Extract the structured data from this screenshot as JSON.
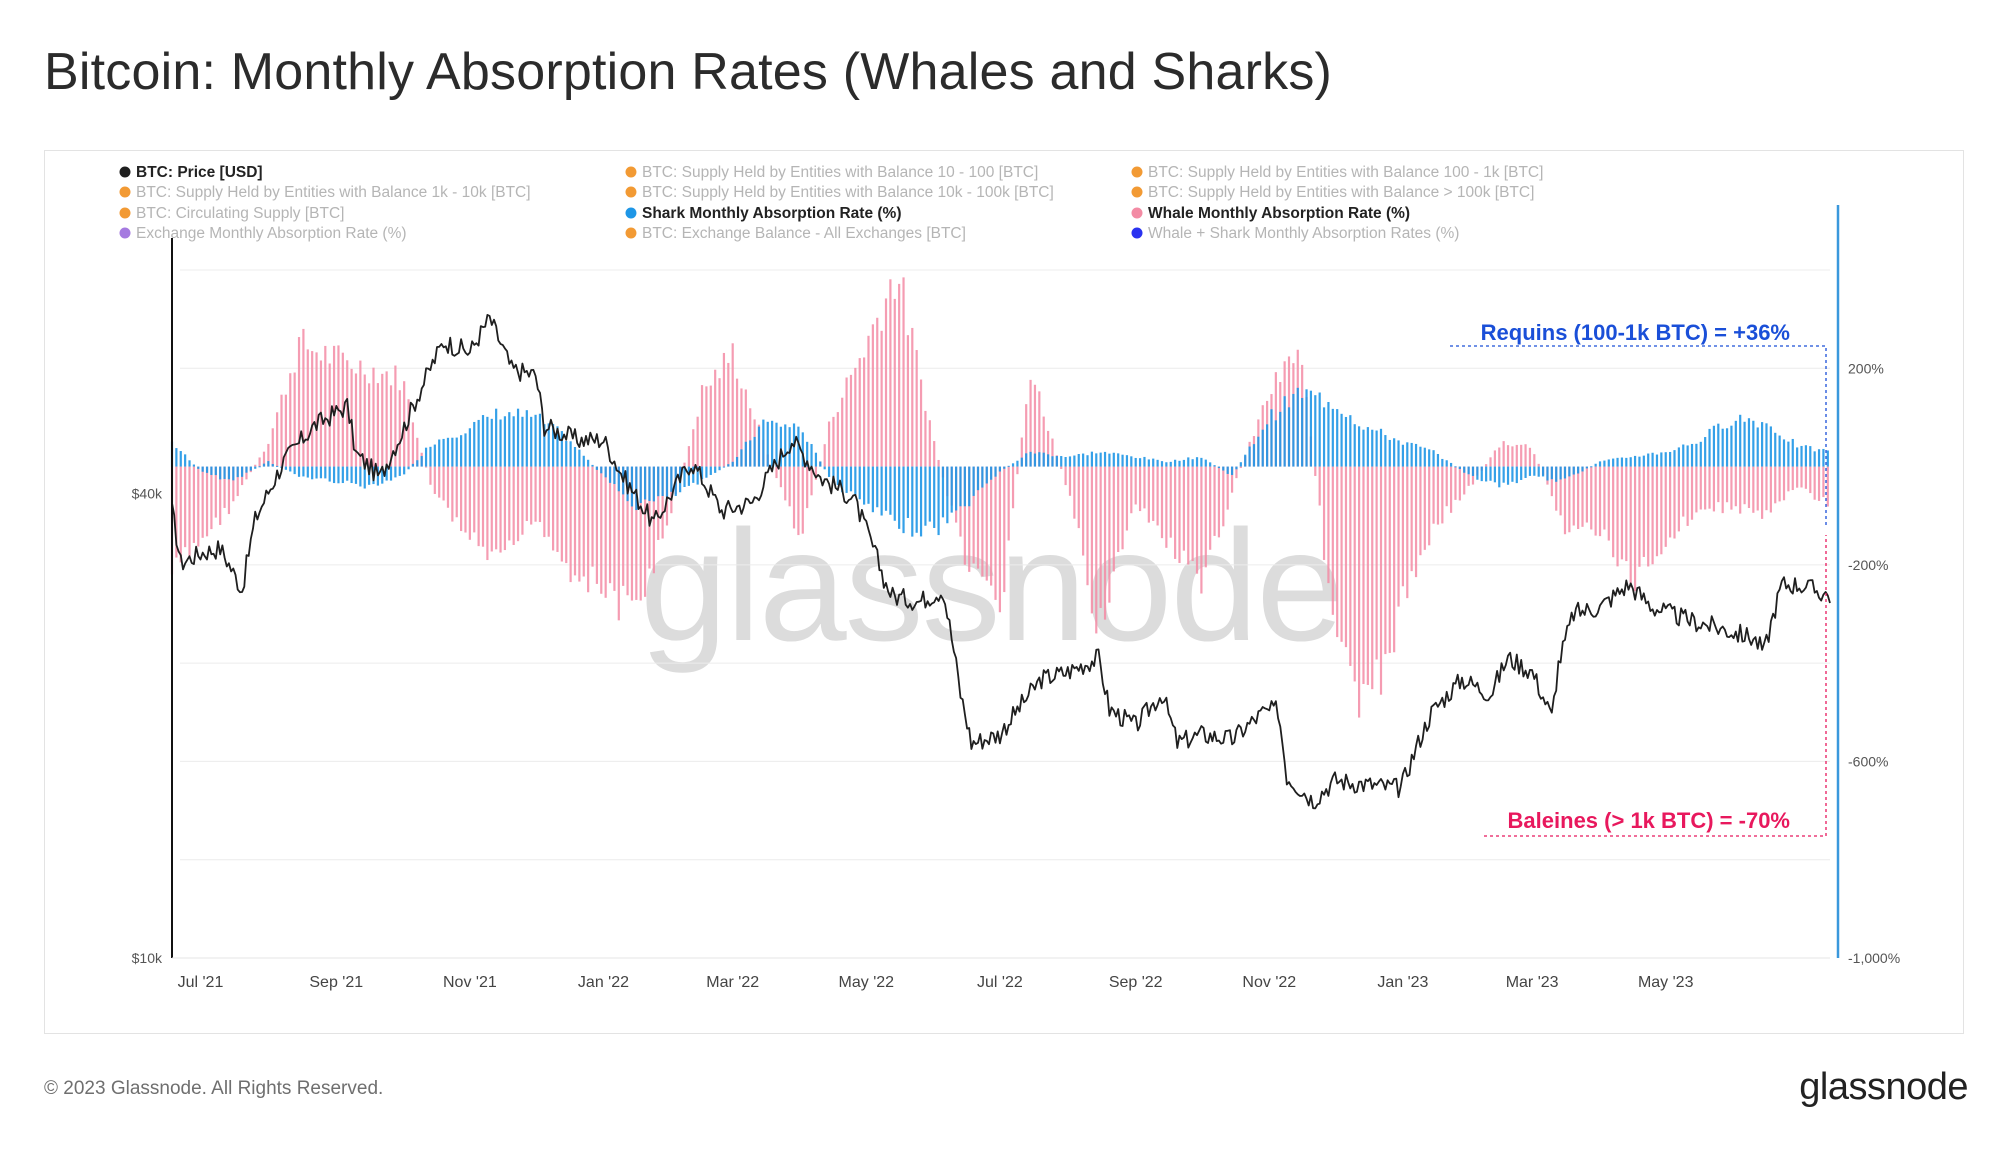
{
  "title": "Bitcoin: Monthly Absorption Rates (Whales and Sharks)",
  "footer": {
    "copyright": "© 2023 Glassnode. All Rights Reserved.",
    "logo": "glassnode"
  },
  "watermark": "glassnode",
  "colors": {
    "price": "#1f1f1f",
    "shark": "#1e96e6",
    "whale": "#f38ba4",
    "orange": "#f29a34",
    "purple": "#a57ae0",
    "blue": "#2a32f0",
    "axis_right": "#3a98dc",
    "shark_annotation": "#1a4fd8",
    "whale_annotation": "#e8185d",
    "legend_inactive": "#b5b5b5",
    "legend_active": "#222222"
  },
  "chart_data": {
    "type": "bar+line",
    "title": "Bitcoin: Monthly Absorption Rates (Whales and Sharks)",
    "x_range": [
      "2021-06-18",
      "2023-07-15"
    ],
    "x_ticks": [
      "Jul '21",
      "Sep '21",
      "Nov '21",
      "Jan '22",
      "Mar '22",
      "May '22",
      "Jul '22",
      "Sep '22",
      "Nov '22",
      "Jan '23",
      "Mar '23",
      "May '23"
    ],
    "x_tick_dates": [
      "2021-07-01",
      "2021-09-01",
      "2021-11-01",
      "2022-01-01",
      "2022-03-01",
      "2022-05-01",
      "2022-07-01",
      "2022-09-01",
      "2022-11-01",
      "2023-01-01",
      "2023-03-01",
      "2023-05-01"
    ],
    "y_left": {
      "scale": "log",
      "range": [
        10000,
        80000
      ],
      "tick_labels": [
        "$10k",
        "$40k"
      ],
      "tick_values": [
        10000,
        40000
      ]
    },
    "y_right": {
      "scale": "linear",
      "range": [
        -1000,
        400
      ],
      "tick_labels": [
        "-1,000%",
        "-600%",
        "-200%",
        "200%"
      ],
      "tick_values": [
        -1000,
        -600,
        -200,
        200
      ],
      "grid_values": [
        -1000,
        -800,
        -600,
        -400,
        -200,
        0,
        200,
        400
      ]
    },
    "legend": [
      {
        "label": "BTC: Price [USD]",
        "color": "#1f1f1f",
        "active": true
      },
      {
        "label": "BTC: Supply Held by Entities with Balance 10 - 100 [BTC]",
        "color": "#f29a34",
        "active": false
      },
      {
        "label": "BTC: Supply Held by Entities with Balance 100 - 1k [BTC]",
        "color": "#f29a34",
        "active": false
      },
      {
        "label": "BTC: Supply Held by Entities with Balance 1k - 10k [BTC]",
        "color": "#f29a34",
        "active": false
      },
      {
        "label": "BTC: Supply Held by Entities with Balance 10k - 100k [BTC]",
        "color": "#f29a34",
        "active": false
      },
      {
        "label": "BTC: Supply Held by Entities with Balance > 100k [BTC]",
        "color": "#f29a34",
        "active": false
      },
      {
        "label": "BTC: Circulating Supply [BTC]",
        "color": "#f29a34",
        "active": false
      },
      {
        "label": "Shark Monthly Absorption Rate (%)",
        "color": "#1e96e6",
        "active": true
      },
      {
        "label": "Whale Monthly Absorption Rate (%)",
        "color": "#f38ba4",
        "active": true
      },
      {
        "label": "Exchange Monthly Absorption Rate (%)",
        "color": "#a57ae0",
        "active": false
      },
      {
        "label": "BTC: Exchange Balance - All Exchanges [BTC]",
        "color": "#f29a34",
        "active": false
      },
      {
        "label": "Whale + Shark Monthly Absorption Rates (%)",
        "color": "#2a32f0",
        "active": false
      }
    ],
    "series": [
      {
        "name": "BTC: Price [USD]",
        "type": "line",
        "axis": "left",
        "dates": [
          "2021-06-18",
          "2021-06-22",
          "2021-07-01",
          "2021-07-10",
          "2021-07-20",
          "2021-07-26",
          "2021-08-08",
          "2021-08-22",
          "2021-09-06",
          "2021-09-10",
          "2021-09-21",
          "2021-10-01",
          "2021-10-10",
          "2021-10-20",
          "2021-11-01",
          "2021-11-10",
          "2021-11-20",
          "2021-12-01",
          "2021-12-05",
          "2021-12-20",
          "2022-01-01",
          "2022-01-10",
          "2022-01-24",
          "2022-02-10",
          "2022-02-24",
          "2022-03-10",
          "2022-03-28",
          "2022-04-10",
          "2022-04-25",
          "2022-05-10",
          "2022-05-13",
          "2022-05-25",
          "2022-06-05",
          "2022-06-13",
          "2022-06-18",
          "2022-07-01",
          "2022-07-20",
          "2022-08-01",
          "2022-08-15",
          "2022-08-20",
          "2022-09-01",
          "2022-09-13",
          "2022-09-20",
          "2022-10-01",
          "2022-10-15",
          "2022-10-29",
          "2022-11-05",
          "2022-11-09",
          "2022-11-21",
          "2022-12-01",
          "2022-12-15",
          "2022-12-31",
          "2023-01-14",
          "2023-01-28",
          "2023-02-10",
          "2023-02-18",
          "2023-03-01",
          "2023-03-10",
          "2023-03-13",
          "2023-03-20",
          "2023-04-01",
          "2023-04-14",
          "2023-04-25",
          "2023-05-10",
          "2023-05-25",
          "2023-06-10",
          "2023-06-15",
          "2023-06-23",
          "2023-07-01",
          "2023-07-15"
        ],
        "values": [
          38000,
          32500,
          33500,
          34000,
          30000,
          37000,
          44000,
          49000,
          52000,
          45000,
          42000,
          48000,
          55000,
          63000,
          61000,
          67500,
          58000,
          57000,
          49000,
          47000,
          47000,
          42000,
          36500,
          44000,
          38000,
          39000,
          47000,
          42000,
          39500,
          30500,
          29500,
          29000,
          30000,
          22000,
          19000,
          19500,
          23000,
          23500,
          24500,
          21000,
          20000,
          22000,
          19000,
          19500,
          19200,
          20800,
          21000,
          17200,
          16000,
          17000,
          16800,
          16600,
          20800,
          23000,
          22000,
          24500,
          23500,
          20500,
          24000,
          28000,
          28500,
          30500,
          28500,
          27500,
          26800,
          26000,
          25000,
          30500,
          30500,
          29500
        ]
      },
      {
        "name": "Shark Monthly Absorption Rate (%)",
        "type": "bar",
        "axis": "right",
        "keyframe_dates": [
          "2021-06-18",
          "2021-07-01",
          "2021-07-15",
          "2021-08-01",
          "2021-08-15",
          "2021-09-01",
          "2021-09-15",
          "2021-10-01",
          "2021-10-15",
          "2021-11-01",
          "2021-11-15",
          "2021-12-01",
          "2021-12-15",
          "2022-01-01",
          "2022-01-15",
          "2022-02-01",
          "2022-02-15",
          "2022-03-01",
          "2022-03-15",
          "2022-04-01",
          "2022-04-15",
          "2022-05-01",
          "2022-05-15",
          "2022-06-01",
          "2022-06-15",
          "2022-07-01",
          "2022-07-15",
          "2022-08-01",
          "2022-08-15",
          "2022-09-01",
          "2022-09-15",
          "2022-10-01",
          "2022-10-15",
          "2022-11-01",
          "2022-11-15",
          "2022-12-01",
          "2022-12-15",
          "2023-01-01",
          "2023-01-15",
          "2023-02-01",
          "2023-02-15",
          "2023-03-01",
          "2023-03-15",
          "2023-04-01",
          "2023-04-15",
          "2023-05-01",
          "2023-05-15",
          "2023-06-01",
          "2023-06-15",
          "2023-07-01",
          "2023-07-15"
        ],
        "values": [
          50,
          -10,
          -30,
          10,
          -20,
          -30,
          -40,
          -20,
          50,
          80,
          110,
          100,
          60,
          -20,
          -80,
          -60,
          -30,
          10,
          90,
          80,
          -30,
          -80,
          -120,
          -130,
          -80,
          -10,
          30,
          20,
          30,
          20,
          10,
          20,
          -20,
          100,
          150,
          130,
          80,
          50,
          30,
          -20,
          -40,
          -20,
          -30,
          10,
          20,
          30,
          50,
          100,
          90,
          40,
          30
        ]
      },
      {
        "name": "Whale Monthly Absorption Rate (%)",
        "type": "bar",
        "axis": "right",
        "keyframe_dates": [
          "2021-06-18",
          "2021-07-01",
          "2021-07-15",
          "2021-08-01",
          "2021-08-15",
          "2021-09-01",
          "2021-09-15",
          "2021-10-01",
          "2021-10-15",
          "2021-11-01",
          "2021-11-15",
          "2021-12-01",
          "2021-12-15",
          "2022-01-01",
          "2022-01-15",
          "2022-02-01",
          "2022-02-15",
          "2022-03-01",
          "2022-03-15",
          "2022-04-01",
          "2022-04-15",
          "2022-05-01",
          "2022-05-15",
          "2022-06-01",
          "2022-06-15",
          "2022-07-01",
          "2022-07-15",
          "2022-08-01",
          "2022-08-15",
          "2022-09-01",
          "2022-09-15",
          "2022-10-01",
          "2022-10-15",
          "2022-11-01",
          "2022-11-15",
          "2022-12-01",
          "2022-12-15",
          "2023-01-01",
          "2023-01-15",
          "2023-02-01",
          "2023-02-15",
          "2023-03-01",
          "2023-03-15",
          "2023-04-01",
          "2023-04-15",
          "2023-05-01",
          "2023-05-15",
          "2023-06-01",
          "2023-06-15",
          "2023-07-01",
          "2023-07-15"
        ],
        "values": [
          -220,
          -150,
          -80,
          50,
          250,
          220,
          200,
          180,
          -50,
          -150,
          -200,
          -100,
          -200,
          -250,
          -300,
          -100,
          150,
          230,
          50,
          -150,
          100,
          250,
          400,
          50,
          -200,
          -300,
          200,
          -50,
          -320,
          -80,
          -150,
          -250,
          -50,
          150,
          240,
          -350,
          -520,
          -280,
          -120,
          -40,
          50,
          40,
          -120,
          -130,
          -240,
          -150,
          -90,
          -80,
          -100,
          -40,
          -80
        ]
      }
    ],
    "annotations": [
      {
        "text": "Requins (100-1k BTC) = +36%",
        "series": "Shark Monthly Absorption Rate (%)",
        "value": 36
      },
      {
        "text": "Baleines (> 1k BTC) = -70%",
        "series": "Whale Monthly Absorption Rate (%)",
        "value": -70
      }
    ]
  }
}
